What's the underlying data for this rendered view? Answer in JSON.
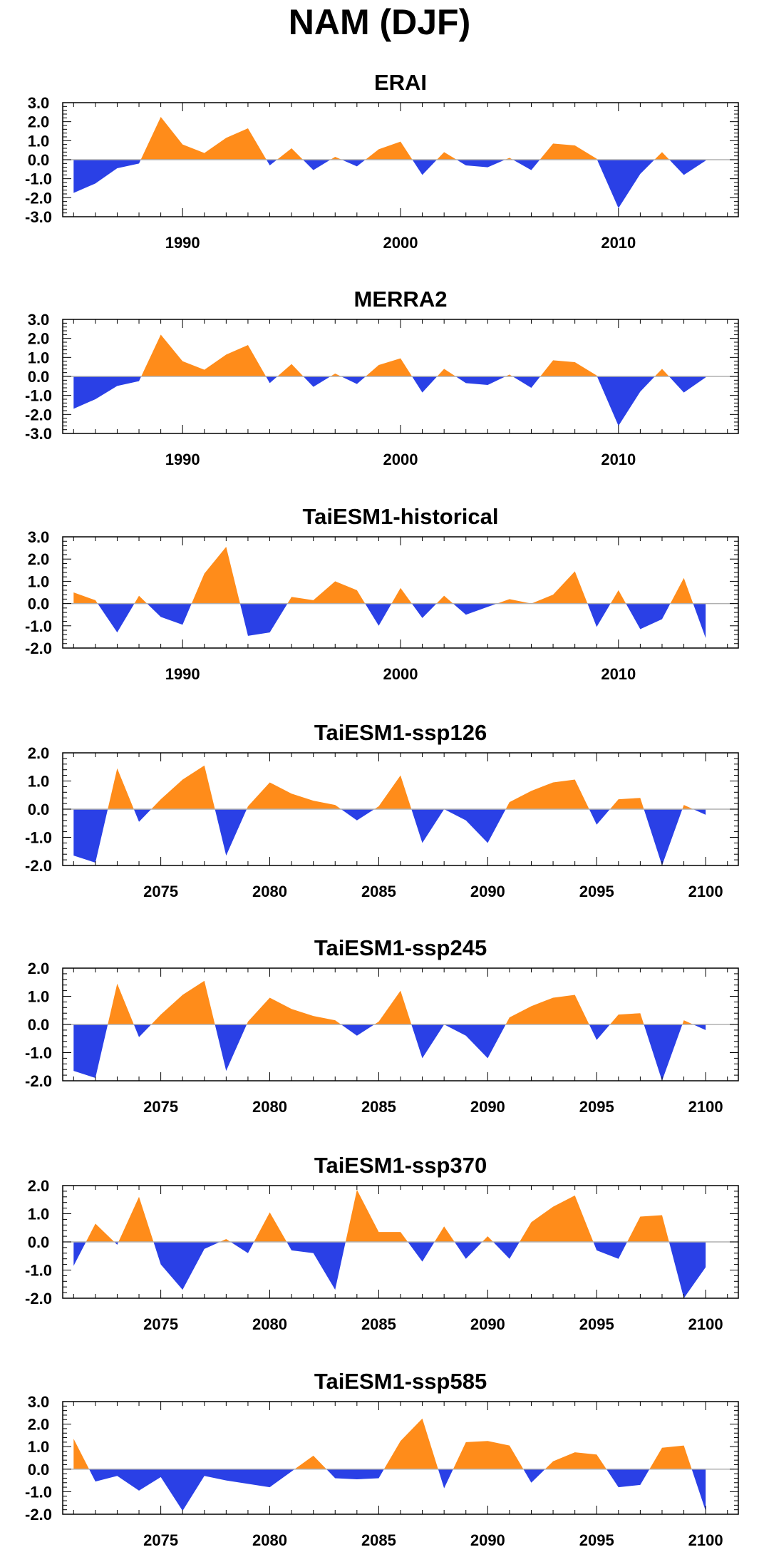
{
  "title": "NAM (DJF)",
  "colors": {
    "positive": "#FF8C1A",
    "negative": "#2A40E6",
    "axis": "#000000",
    "zero_line": "#B0B0B0"
  },
  "chart_data": [
    {
      "type": "area",
      "title": "ERAI",
      "xlim": [
        1984.5,
        2015.5
      ],
      "ylim": [
        -3.0,
        3.0
      ],
      "yticks": [
        3.0,
        2.0,
        1.0,
        0.0,
        -1.0,
        -2.0,
        -3.0
      ],
      "ytick_labels": [
        "3.0",
        "2.0",
        "1.0",
        "0.0",
        "-1.0",
        "-2.0",
        "-3.0"
      ],
      "xticks": [
        1990,
        2000,
        2010
      ],
      "xtick_labels": [
        "1990",
        "2000",
        "2010"
      ],
      "x": [
        1985,
        1986,
        1987,
        1988,
        1989,
        1990,
        1991,
        1992,
        1993,
        1994,
        1995,
        1996,
        1997,
        1998,
        1999,
        2000,
        2001,
        2002,
        2003,
        2004,
        2005,
        2006,
        2007,
        2008,
        2009,
        2010,
        2011,
        2012,
        2013,
        2014
      ],
      "values": [
        -1.75,
        -1.25,
        -0.45,
        -0.2,
        2.25,
        0.8,
        0.35,
        1.15,
        1.65,
        -0.3,
        0.6,
        -0.55,
        0.15,
        -0.35,
        0.55,
        0.95,
        -0.8,
        0.4,
        -0.3,
        -0.4,
        0.1,
        -0.55,
        0.85,
        0.75,
        0.05,
        -2.55,
        -0.75,
        0.4,
        -0.8,
        -0.05
      ]
    },
    {
      "type": "area",
      "title": "MERRA2",
      "xlim": [
        1984.5,
        2015.5
      ],
      "ylim": [
        -3.0,
        3.0
      ],
      "yticks": [
        3.0,
        2.0,
        1.0,
        0.0,
        -1.0,
        -2.0,
        -3.0
      ],
      "ytick_labels": [
        "3.0",
        "2.0",
        "1.0",
        "0.0",
        "-1.0",
        "-2.0",
        "-3.0"
      ],
      "xticks": [
        1990,
        2000,
        2010
      ],
      "xtick_labels": [
        "1990",
        "2000",
        "2010"
      ],
      "x": [
        1985,
        1986,
        1987,
        1988,
        1989,
        1990,
        1991,
        1992,
        1993,
        1994,
        1995,
        1996,
        1997,
        1998,
        1999,
        2000,
        2001,
        2002,
        2003,
        2004,
        2005,
        2006,
        2007,
        2008,
        2009,
        2010,
        2011,
        2012,
        2013,
        2014
      ],
      "values": [
        -1.7,
        -1.2,
        -0.5,
        -0.25,
        2.2,
        0.8,
        0.35,
        1.15,
        1.65,
        -0.35,
        0.65,
        -0.55,
        0.15,
        -0.4,
        0.6,
        0.95,
        -0.85,
        0.4,
        -0.35,
        -0.45,
        0.1,
        -0.6,
        0.85,
        0.75,
        0.05,
        -2.6,
        -0.8,
        0.4,
        -0.85,
        -0.05
      ]
    },
    {
      "type": "area",
      "title": "TaiESM1-historical",
      "xlim": [
        1984.5,
        2015.5
      ],
      "ylim": [
        -2.0,
        3.0
      ],
      "yticks": [
        3.0,
        2.0,
        1.0,
        0.0,
        -1.0,
        -2.0
      ],
      "ytick_labels": [
        "3.0",
        "2.0",
        "1.0",
        "0.0",
        "-1.0",
        "-2.0"
      ],
      "xticks": [
        1990,
        2000,
        2010
      ],
      "xtick_labels": [
        "1990",
        "2000",
        "2010"
      ],
      "x": [
        1985,
        1986,
        1987,
        1988,
        1989,
        1990,
        1991,
        1992,
        1993,
        1994,
        1995,
        1996,
        1997,
        1998,
        1999,
        2000,
        2001,
        2002,
        2003,
        2004,
        2005,
        2006,
        2007,
        2008,
        2009,
        2010,
        2011,
        2012,
        2013,
        2014
      ],
      "values": [
        0.5,
        0.15,
        -1.3,
        0.35,
        -0.6,
        -0.95,
        1.35,
        2.55,
        -1.45,
        -1.3,
        0.3,
        0.15,
        1.0,
        0.6,
        -1.0,
        0.7,
        -0.65,
        0.35,
        -0.5,
        -0.15,
        0.2,
        0.0,
        0.4,
        1.45,
        -1.05,
        0.6,
        -1.15,
        -0.7,
        1.15,
        -1.55
      ]
    },
    {
      "type": "area",
      "title": "TaiESM1-ssp126",
      "xlim": [
        2070.5,
        2101.5
      ],
      "ylim": [
        -2.0,
        2.0
      ],
      "yticks": [
        2.0,
        1.0,
        0.0,
        -1.0,
        -2.0
      ],
      "ytick_labels": [
        "2.0",
        "1.0",
        "0.0",
        "-1.0",
        "-2.0"
      ],
      "xticks": [
        2075,
        2080,
        2085,
        2090,
        2095,
        2100
      ],
      "xtick_labels": [
        "2075",
        "2080",
        "2085",
        "2090",
        "2095",
        "2100"
      ],
      "x": [
        2071,
        2072,
        2073,
        2074,
        2075,
        2076,
        2077,
        2078,
        2079,
        2080,
        2081,
        2082,
        2083,
        2084,
        2085,
        2086,
        2087,
        2088,
        2089,
        2090,
        2091,
        2092,
        2093,
        2094,
        2095,
        2096,
        2097,
        2098,
        2099,
        2100
      ],
      "values": [
        -1.65,
        -1.9,
        1.45,
        -0.45,
        0.35,
        1.05,
        1.55,
        -1.65,
        0.1,
        0.95,
        0.55,
        0.3,
        0.15,
        -0.4,
        0.1,
        1.2,
        -1.2,
        0.0,
        -0.4,
        -1.2,
        0.25,
        0.65,
        0.95,
        1.05,
        -0.55,
        0.35,
        0.4,
        -2.0,
        0.15,
        -0.2
      ]
    },
    {
      "type": "area",
      "title": "TaiESM1-ssp245",
      "xlim": [
        2070.5,
        2101.5
      ],
      "ylim": [
        -2.0,
        2.0
      ],
      "yticks": [
        2.0,
        1.0,
        0.0,
        -1.0,
        -2.0
      ],
      "ytick_labels": [
        "2.0",
        "1.0",
        "0.0",
        "-1.0",
        "-2.0"
      ],
      "xticks": [
        2075,
        2080,
        2085,
        2090,
        2095,
        2100
      ],
      "xtick_labels": [
        "2075",
        "2080",
        "2085",
        "2090",
        "2095",
        "2100"
      ],
      "x": [
        2071,
        2072,
        2073,
        2074,
        2075,
        2076,
        2077,
        2078,
        2079,
        2080,
        2081,
        2082,
        2083,
        2084,
        2085,
        2086,
        2087,
        2088,
        2089,
        2090,
        2091,
        2092,
        2093,
        2094,
        2095,
        2096,
        2097,
        2098,
        2099,
        2100
      ],
      "values": [
        -1.65,
        -1.9,
        1.45,
        -0.45,
        0.35,
        1.05,
        1.55,
        -1.65,
        0.1,
        0.95,
        0.55,
        0.3,
        0.15,
        -0.4,
        0.1,
        1.2,
        -1.2,
        0.0,
        -0.4,
        -1.2,
        0.25,
        0.65,
        0.95,
        1.05,
        -0.55,
        0.35,
        0.4,
        -2.0,
        0.15,
        -0.2
      ]
    },
    {
      "type": "area",
      "title": "TaiESM1-ssp370",
      "xlim": [
        2070.5,
        2101.5
      ],
      "ylim": [
        -2.0,
        2.0
      ],
      "yticks": [
        2.0,
        1.0,
        0.0,
        -1.0,
        -2.0
      ],
      "ytick_labels": [
        "2.0",
        "1.0",
        "0.0",
        "-1.0",
        "-2.0"
      ],
      "xticks": [
        2075,
        2080,
        2085,
        2090,
        2095,
        2100
      ],
      "xtick_labels": [
        "2075",
        "2080",
        "2085",
        "2090",
        "2095",
        "2100"
      ],
      "x": [
        2071,
        2072,
        2073,
        2074,
        2075,
        2076,
        2077,
        2078,
        2079,
        2080,
        2081,
        2082,
        2083,
        2084,
        2085,
        2086,
        2087,
        2088,
        2089,
        2090,
        2091,
        2092,
        2093,
        2094,
        2095,
        2096,
        2097,
        2098,
        2099,
        2100
      ],
      "values": [
        -0.85,
        0.65,
        -0.1,
        1.6,
        -0.8,
        -1.7,
        -0.25,
        0.1,
        -0.4,
        1.05,
        -0.3,
        -0.4,
        -1.7,
        1.85,
        0.35,
        0.35,
        -0.7,
        0.55,
        -0.6,
        0.2,
        -0.6,
        0.7,
        1.25,
        1.65,
        -0.3,
        -0.6,
        0.9,
        0.95,
        -2.0,
        -0.9
      ]
    },
    {
      "type": "area",
      "title": "TaiESM1-ssp585",
      "xlim": [
        2070.5,
        2101.5
      ],
      "ylim": [
        -2.0,
        3.0
      ],
      "yticks": [
        3.0,
        2.0,
        1.0,
        0.0,
        -1.0,
        -2.0
      ],
      "ytick_labels": [
        "3.0",
        "2.0",
        "1.0",
        "0.0",
        "-1.0",
        "-2.0"
      ],
      "xticks": [
        2075,
        2080,
        2085,
        2090,
        2095,
        2100
      ],
      "xtick_labels": [
        "2075",
        "2080",
        "2085",
        "2090",
        "2095",
        "2100"
      ],
      "x": [
        2071,
        2072,
        2073,
        2074,
        2075,
        2076,
        2077,
        2078,
        2079,
        2080,
        2081,
        2082,
        2083,
        2084,
        2085,
        2086,
        2087,
        2088,
        2089,
        2090,
        2091,
        2092,
        2093,
        2094,
        2095,
        2096,
        2097,
        2098,
        2099,
        2100
      ],
      "values": [
        1.35,
        -0.55,
        -0.3,
        -0.95,
        -0.35,
        -1.85,
        -0.3,
        -0.5,
        -0.65,
        -0.8,
        -0.1,
        0.6,
        -0.4,
        -0.45,
        -0.4,
        1.25,
        2.25,
        -0.85,
        1.2,
        1.25,
        1.05,
        -0.6,
        0.35,
        0.75,
        0.65,
        -0.8,
        -0.7,
        0.95,
        1.05,
        -1.85
      ]
    }
  ]
}
